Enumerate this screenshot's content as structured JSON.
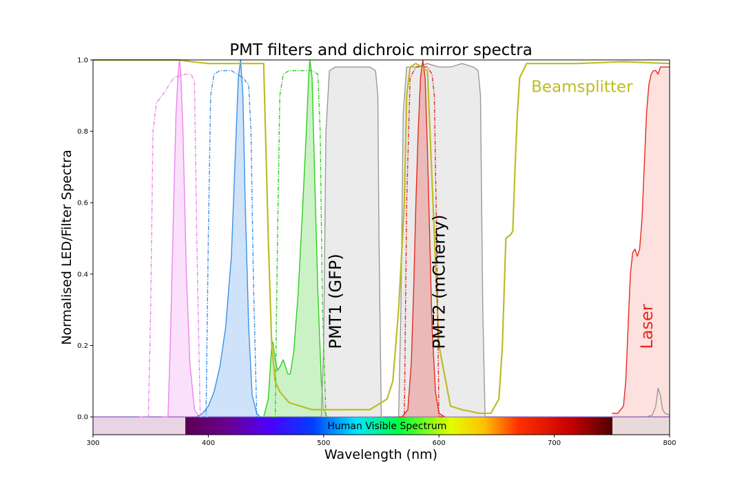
{
  "chart_data": {
    "type": "line",
    "title": "PMT filters and dichroic mirror spectra",
    "xlabel": "Wavelength (nm)",
    "ylabel": "Normalised LED/Filter Spectra",
    "xlim": [
      300,
      800
    ],
    "ylim": [
      -0.05,
      1.0
    ],
    "x_ticks": [
      300,
      400,
      500,
      600,
      700,
      800
    ],
    "x_tick_labels": [
      "300",
      "400",
      "500",
      "600",
      "700",
      "800"
    ],
    "y_ticks": [
      0.0,
      0.2,
      0.4,
      0.6,
      0.8,
      1.0
    ],
    "y_tick_labels": [
      "0.0",
      "0.2",
      "0.4",
      "0.6",
      "0.8",
      "1.0"
    ],
    "grid": false,
    "colors": {
      "beamsplitter": "#bcbd22",
      "violet": "#ee82ee",
      "blue": "#3b8fe6",
      "green": "#2fcc1f",
      "red": "#e8281e",
      "laser": "#e8281e",
      "pmt": "#999999"
    },
    "annotations": [
      {
        "id": "beamsplitter-label",
        "text": "Beamsplitter",
        "x": 680,
        "y": 0.91,
        "color": "#bcbd22",
        "rotation": 0
      },
      {
        "id": "pmt1-label",
        "text": "PMT1 (GFP)",
        "x": 515,
        "y": 0.19,
        "color": "#000000",
        "rotation": -90
      },
      {
        "id": "pmt2-label",
        "text": "PMT2 (mCherry)",
        "x": 605,
        "y": 0.19,
        "color": "#000000",
        "rotation": -90
      },
      {
        "id": "laser-label",
        "text": "Laser",
        "x": 785,
        "y": 0.19,
        "color": "#e8281e",
        "rotation": -90
      },
      {
        "id": "visible-label",
        "text": "Human Visible Spectrum",
        "x": 555,
        "y": -0.025,
        "color": "#000000",
        "rotation": 0
      }
    ],
    "visible_spectrum_band": {
      "x": [
        380,
        750
      ],
      "y": [
        -0.05,
        0.0
      ]
    },
    "series": [
      {
        "key": "beamsplitter",
        "style": "solid",
        "fill": false,
        "color": "#bcbd22",
        "x": [
          300,
          350,
          375,
          385,
          400,
          420,
          440,
          448,
          452,
          455,
          458,
          462,
          470,
          480,
          490,
          500,
          520,
          540,
          555,
          560,
          565,
          570,
          572,
          575,
          580,
          590,
          600,
          610,
          620,
          635,
          645,
          652,
          655,
          658,
          662,
          664,
          666,
          668,
          670,
          676,
          690,
          720,
          760,
          800
        ],
        "y": [
          1.0,
          1.0,
          1.0,
          0.995,
          0.99,
          0.99,
          0.99,
          0.99,
          0.5,
          0.2,
          0.1,
          0.07,
          0.04,
          0.03,
          0.02,
          0.02,
          0.02,
          0.02,
          0.05,
          0.1,
          0.3,
          0.6,
          0.9,
          0.98,
          0.99,
          0.97,
          0.2,
          0.03,
          0.02,
          0.01,
          0.01,
          0.05,
          0.2,
          0.5,
          0.51,
          0.52,
          0.7,
          0.85,
          0.95,
          0.99,
          0.99,
          0.99,
          0.995,
          0.99
        ]
      },
      {
        "key": "violet-filter",
        "style": "dashdot",
        "fill": false,
        "color": "#ee82ee",
        "x": [
          340,
          348,
          350,
          352,
          355,
          360,
          370,
          380,
          385,
          388,
          390,
          393,
          400
        ],
        "y": [
          0.0,
          0.0,
          0.3,
          0.8,
          0.88,
          0.9,
          0.95,
          0.96,
          0.96,
          0.94,
          0.5,
          0.0,
          0.0
        ]
      },
      {
        "key": "violet-led",
        "style": "solid",
        "fill": true,
        "color": "#ee82ee",
        "x": [
          360,
          365,
          367,
          370,
          372,
          374,
          375,
          376,
          378,
          381,
          384,
          388,
          392
        ],
        "y": [
          0.0,
          0.0,
          0.2,
          0.6,
          0.85,
          0.97,
          1.0,
          0.97,
          0.8,
          0.4,
          0.15,
          0.02,
          0.0
        ]
      },
      {
        "key": "blue-filter",
        "style": "dashdot",
        "fill": false,
        "color": "#3b8fe6",
        "x": [
          395,
          398,
          400,
          402,
          405,
          410,
          420,
          430,
          435,
          437,
          439,
          442,
          445
        ],
        "y": [
          0.0,
          0.0,
          0.5,
          0.9,
          0.96,
          0.97,
          0.97,
          0.95,
          0.93,
          0.8,
          0.4,
          0.0,
          0.0
        ]
      },
      {
        "key": "blue-led",
        "style": "solid",
        "fill": true,
        "color": "#3b8fe6",
        "x": [
          390,
          395,
          400,
          405,
          410,
          415,
          420,
          423,
          426,
          428,
          430,
          432,
          435,
          438,
          442,
          445
        ],
        "y": [
          0.0,
          0.01,
          0.03,
          0.07,
          0.14,
          0.25,
          0.45,
          0.7,
          0.95,
          1.0,
          0.9,
          0.6,
          0.25,
          0.06,
          0.01,
          0.0
        ]
      },
      {
        "key": "green-filter",
        "style": "dashdot",
        "fill": false,
        "color": "#2fcc1f",
        "x": [
          455,
          458,
          460,
          462,
          465,
          470,
          480,
          490,
          495,
          497,
          499,
          502,
          505
        ],
        "y": [
          0.0,
          0.0,
          0.5,
          0.9,
          0.96,
          0.97,
          0.97,
          0.97,
          0.96,
          0.8,
          0.3,
          0.0,
          0.0
        ]
      },
      {
        "key": "green-led",
        "style": "solid",
        "fill": true,
        "color": "#2fcc1f",
        "x": [
          448,
          452,
          454,
          455,
          456,
          458,
          460,
          462,
          465,
          467,
          469,
          471,
          474,
          478,
          482,
          485,
          487,
          488,
          490,
          492,
          495,
          498,
          500,
          503
        ],
        "y": [
          0.0,
          0.05,
          0.15,
          0.2,
          0.21,
          0.16,
          0.13,
          0.14,
          0.16,
          0.14,
          0.12,
          0.12,
          0.18,
          0.35,
          0.6,
          0.8,
          0.95,
          1.0,
          0.95,
          0.7,
          0.35,
          0.1,
          0.02,
          0.0
        ]
      },
      {
        "key": "pmt1-filter",
        "style": "solid",
        "fill": true,
        "color": "#999999",
        "x": [
          498,
          500,
          502,
          505,
          510,
          520,
          530,
          540,
          545,
          547,
          548,
          550,
          552
        ],
        "y": [
          0.0,
          0.2,
          0.8,
          0.97,
          0.98,
          0.98,
          0.98,
          0.98,
          0.97,
          0.9,
          0.5,
          0.0,
          0.0
        ]
      },
      {
        "key": "pmt2-filter",
        "style": "solid",
        "fill": true,
        "color": "#999999",
        "x": [
          565,
          567,
          569,
          572,
          580,
          590,
          600,
          610,
          620,
          630,
          634,
          636,
          638,
          640
        ],
        "y": [
          0.0,
          0.3,
          0.85,
          0.98,
          0.98,
          0.99,
          0.98,
          0.98,
          0.99,
          0.98,
          0.97,
          0.9,
          0.3,
          0.0
        ]
      },
      {
        "key": "red-filter",
        "style": "dashdot",
        "fill": false,
        "color": "#e8281e",
        "x": [
          565,
          570,
          572,
          575,
          580,
          590,
          594,
          596,
          598,
          600,
          603
        ],
        "y": [
          0.0,
          0.0,
          0.6,
          0.95,
          0.98,
          0.98,
          0.96,
          0.9,
          0.5,
          0.0,
          0.0
        ]
      },
      {
        "key": "red-led",
        "style": "solid",
        "fill": true,
        "color": "#e8281e",
        "x": [
          568,
          573,
          576,
          578,
          580,
          582,
          584,
          586,
          588,
          590,
          592,
          594,
          597,
          600,
          605
        ],
        "y": [
          0.0,
          0.02,
          0.15,
          0.35,
          0.6,
          0.8,
          0.95,
          1.0,
          0.95,
          0.75,
          0.5,
          0.25,
          0.07,
          0.01,
          0.0
        ]
      },
      {
        "key": "laser",
        "style": "solid",
        "fill": true,
        "color": "#e8281e",
        "x": [
          750,
          755,
          760,
          762,
          764,
          766,
          768,
          770,
          772,
          774,
          776,
          778,
          780,
          782,
          784,
          786,
          788,
          790,
          792,
          795,
          800
        ],
        "y": [
          0.01,
          0.01,
          0.03,
          0.1,
          0.25,
          0.4,
          0.46,
          0.47,
          0.45,
          0.47,
          0.55,
          0.7,
          0.85,
          0.93,
          0.96,
          0.97,
          0.97,
          0.96,
          0.98,
          0.98,
          0.98
        ]
      },
      {
        "key": "laser-pmt-peak",
        "style": "solid",
        "fill": false,
        "color": "#999999",
        "x": [
          780,
          785,
          788,
          790,
          792,
          794,
          796,
          800
        ],
        "y": [
          0.0,
          0.005,
          0.03,
          0.08,
          0.06,
          0.02,
          0.01,
          0.005
        ]
      }
    ]
  }
}
